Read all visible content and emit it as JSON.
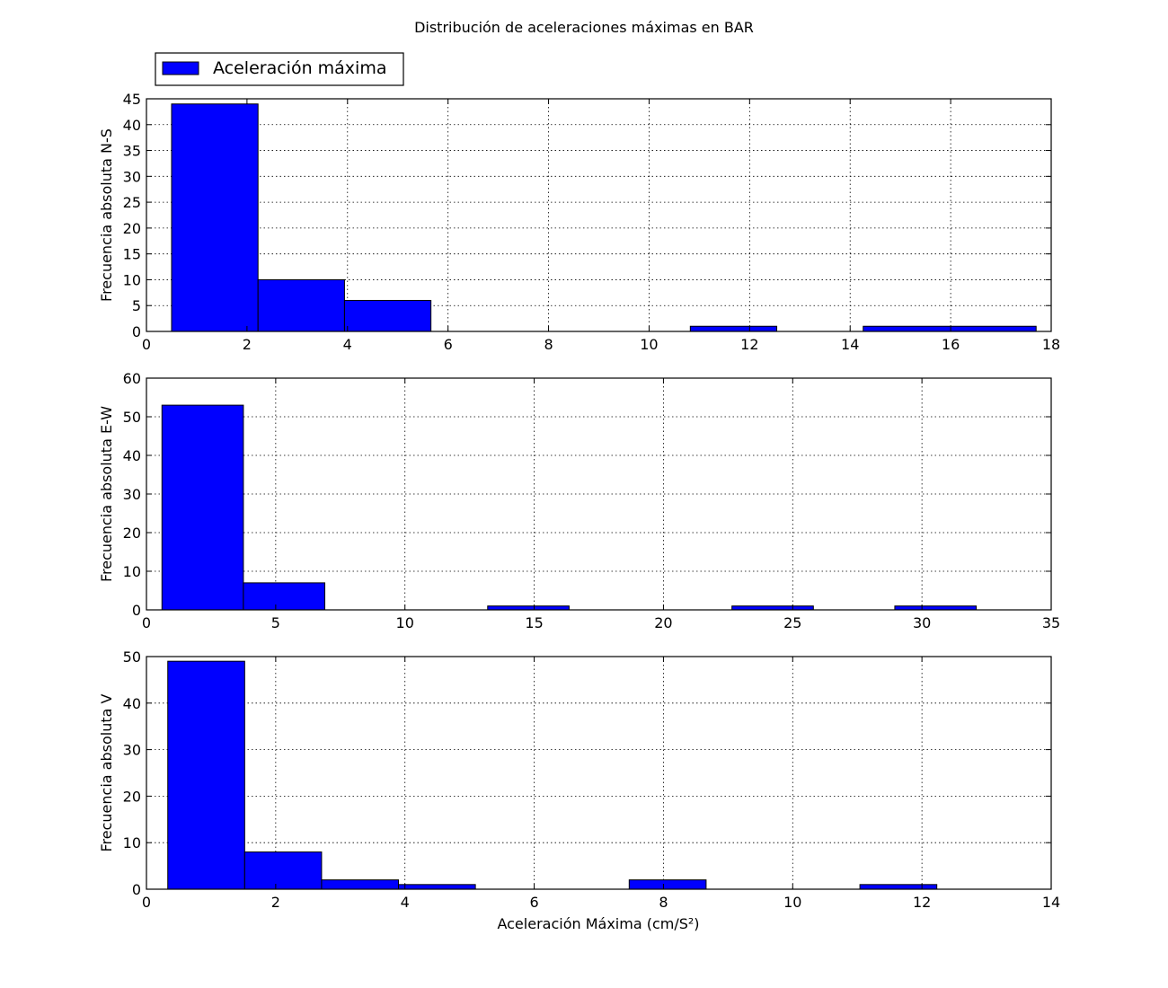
{
  "chart_data": {
    "title": "Distribución de aceleraciones máximas en BAR",
    "legend": {
      "label": "Aceleración máxima",
      "placement": "top-left, above first axes",
      "color": "#0000ff"
    },
    "bar_color": "#0000ff",
    "xlabel": "Aceleración Máxima (cm/S²)",
    "panels": [
      {
        "type": "bar",
        "ylabel": "Frecuencia absoluta N-S",
        "xlim": [
          0,
          18
        ],
        "ylim": [
          0,
          45
        ],
        "xticks": [
          0,
          2,
          4,
          6,
          8,
          10,
          12,
          14,
          16,
          18
        ],
        "yticks": [
          0,
          5,
          10,
          15,
          20,
          25,
          30,
          35,
          40,
          45
        ],
        "grid": true,
        "bins": [
          {
            "x0": 0.5,
            "x1": 2.22,
            "count": 44
          },
          {
            "x0": 2.22,
            "x1": 3.94,
            "count": 10
          },
          {
            "x0": 3.94,
            "x1": 5.66,
            "count": 6
          },
          {
            "x0": 10.82,
            "x1": 12.54,
            "count": 1
          },
          {
            "x0": 14.26,
            "x1": 17.7,
            "count": 1
          }
        ]
      },
      {
        "type": "bar",
        "ylabel": "Frecuencia absoluta E-W",
        "xlim": [
          0,
          35
        ],
        "ylim": [
          0,
          60
        ],
        "xticks": [
          0,
          5,
          10,
          15,
          20,
          25,
          30,
          35
        ],
        "yticks": [
          0,
          10,
          20,
          30,
          40,
          50,
          60
        ],
        "grid": true,
        "bins": [
          {
            "x0": 0.6,
            "x1": 3.75,
            "count": 53
          },
          {
            "x0": 3.75,
            "x1": 6.9,
            "count": 7
          },
          {
            "x0": 13.2,
            "x1": 16.35,
            "count": 1
          },
          {
            "x0": 22.65,
            "x1": 25.8,
            "count": 1
          },
          {
            "x0": 28.95,
            "x1": 32.1,
            "count": 1
          }
        ]
      },
      {
        "type": "bar",
        "ylabel": "Frecuencia absoluta V",
        "xlim": [
          0,
          14
        ],
        "ylim": [
          0,
          50
        ],
        "xticks": [
          0,
          2,
          4,
          6,
          8,
          10,
          12,
          14
        ],
        "yticks": [
          0,
          10,
          20,
          30,
          40,
          50
        ],
        "grid": true,
        "bins": [
          {
            "x0": 0.33,
            "x1": 1.52,
            "count": 49
          },
          {
            "x0": 1.52,
            "x1": 2.71,
            "count": 8
          },
          {
            "x0": 2.71,
            "x1": 3.9,
            "count": 2
          },
          {
            "x0": 3.9,
            "x1": 5.09,
            "count": 1
          },
          {
            "x0": 7.47,
            "x1": 8.66,
            "count": 2
          },
          {
            "x0": 11.04,
            "x1": 12.23,
            "count": 1
          }
        ]
      }
    ]
  }
}
